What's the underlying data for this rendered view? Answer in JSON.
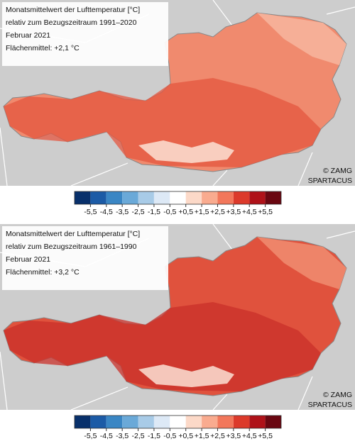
{
  "panels": [
    {
      "title": "Monatsmittelwert der Lufttemperatur [°C]",
      "reference": "relativ zum Bezugszeitraum 1991–2020",
      "period": "Februar 2021",
      "area_mean": "Flächenmittel: +2,1 °C",
      "credit": [
        "© ZAMG",
        "SPARTACUS"
      ]
    },
    {
      "title": "Monatsmittelwert der Lufttemperatur [°C]",
      "reference": "relativ zum Bezugszeitraum 1961–1990",
      "period": "Februar 2021",
      "area_mean": "Flächenmittel: +3,2 °C",
      "credit": [
        "© ZAMG",
        "SPARTACUS"
      ]
    }
  ],
  "legend": {
    "colors": [
      "#08306b",
      "#1c5ba6",
      "#3a86c4",
      "#6aa9d8",
      "#a8cbe7",
      "#dde9f6",
      "#ffffff",
      "#fcd9c8",
      "#f9ab8f",
      "#f2775b",
      "#dc3a2b",
      "#af1219",
      "#6a0711"
    ],
    "labels": [
      "-5,5",
      "-4,5",
      "-3,5",
      "-2,5",
      "-1,5",
      "-0,5",
      "+0,5",
      "+1,5",
      "+2,5",
      "+3,5",
      "+4,5",
      "+5,5"
    ]
  }
}
